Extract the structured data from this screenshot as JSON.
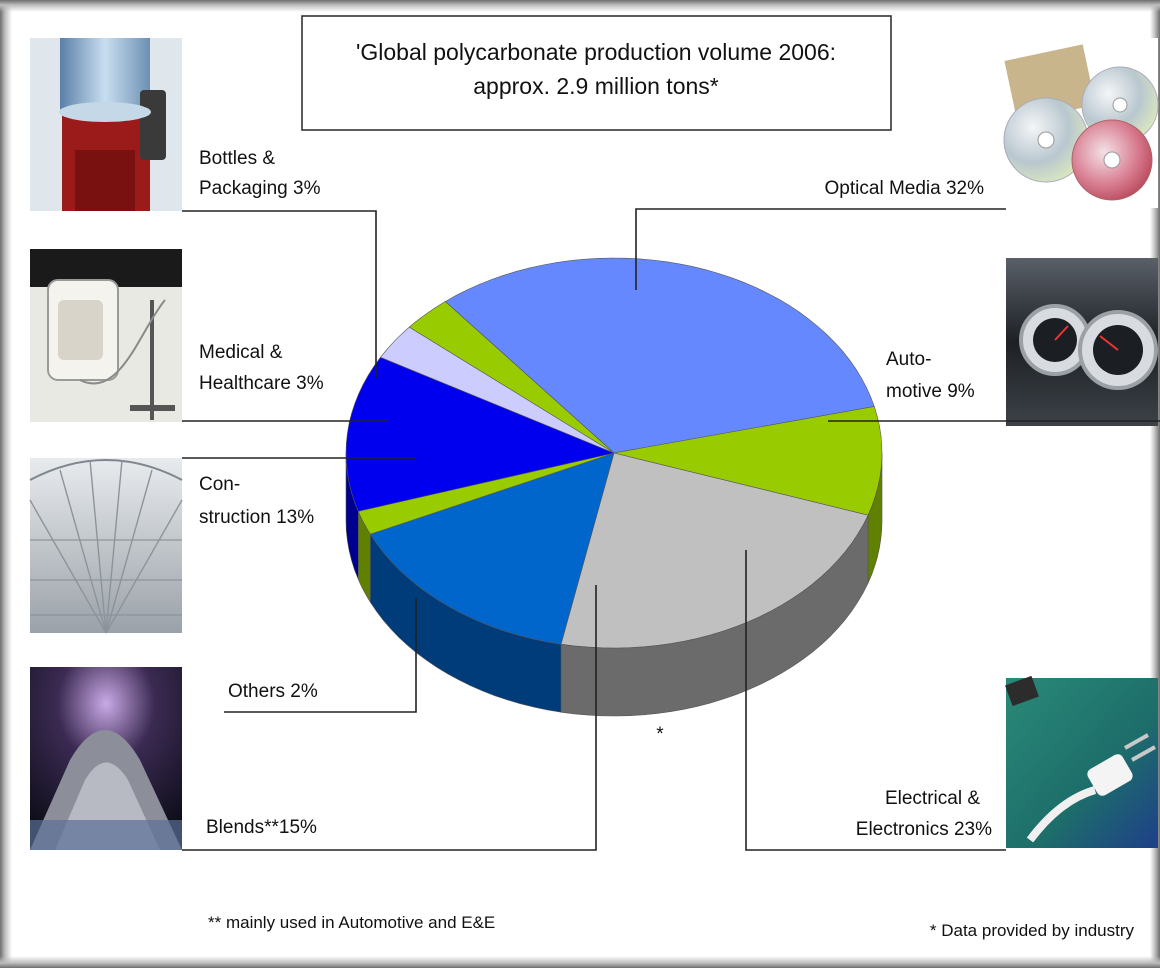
{
  "chart_data": {
    "type": "pie",
    "title_line1": "'Global polycarbonate production volume 2006:",
    "title_line2": "approx. 2.9 million tons*",
    "slices": [
      {
        "key": "optical",
        "label": [
          "Optical Media 32%"
        ],
        "value": 32,
        "color": "#6688ff",
        "side": "#3b55b8"
      },
      {
        "key": "auto",
        "label": [
          "Auto-",
          "motive 9%"
        ],
        "value": 9,
        "color": "#99cc00",
        "side": "#5f8000"
      },
      {
        "key": "ee",
        "label": [
          "Electrical &",
          "Electronics 23%"
        ],
        "value": 23,
        "color": "#c0c0c0",
        "side": "#6b6b6b"
      },
      {
        "key": "blends",
        "label": [
          "Blends**15%"
        ],
        "value": 15,
        "color": "#0066cc",
        "side": "#003c7a"
      },
      {
        "key": "others",
        "label": [
          "Others 2%"
        ],
        "value": 2,
        "color": "#99cc00",
        "side": "#5f8000"
      },
      {
        "key": "construction",
        "label": [
          "Con-",
          "struction 13%"
        ],
        "value": 13,
        "color": "#0000ee",
        "side": "#000090"
      },
      {
        "key": "medical",
        "label": [
          "Medical &",
          "Healthcare 3%"
        ],
        "value": 3,
        "color": "#ccccff",
        "side": "#8888bb"
      },
      {
        "key": "bottles",
        "label": [
          "Bottles &",
          "Packaging 3%"
        ],
        "value": 3,
        "color": "#99cc00",
        "side": "#5f8000"
      }
    ],
    "asterisk_mark": "*",
    "footnote_left": "** mainly used in Automotive and E&E",
    "footnote_right": "* Data provided by industry"
  },
  "photos": {
    "water_dispenser": "water-bottle-dispenser-photo",
    "medical_device": "medical-device-photo",
    "glass_roof": "glass-roof-construction-photo",
    "pellets": "polycarbonate-pellets-photo",
    "discs": "optical-discs-photo",
    "dashboard": "car-dashboard-photo",
    "plug": "electrical-plug-photo"
  }
}
